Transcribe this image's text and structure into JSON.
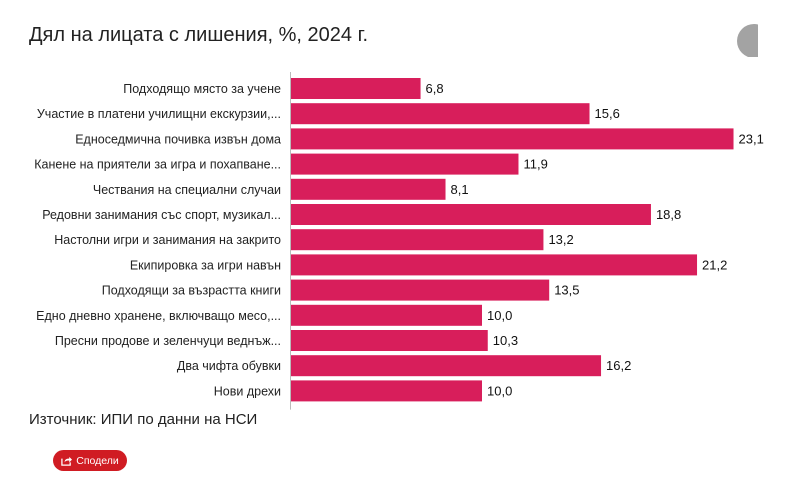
{
  "title": "Дял на лицата с лишения, %, 2024 г.",
  "source": "Източник: ИПИ по данни на НСИ",
  "share_label": "Сподели",
  "colors": {
    "bar": "#d81e5b",
    "share": "#d01c23"
  },
  "chart_data": {
    "type": "bar",
    "orientation": "horizontal",
    "categories": [
      "Подходящо място за учене",
      "Участие в платени училищни екскурзии,...",
      "Едноседмична почивка извън дома",
      "Канене на приятели за игра и похапване...",
      "Чествания на специални случаи",
      "Редовни занимания със спорт, музикал...",
      "Настолни игри и занимания на закрито",
      "Екипировка за игри навън",
      "Подходящи за възрастта книги",
      "Едно дневно хранене, включващо месо,...",
      "Пресни продове и зеленчуци веднъж...",
      "Два чифта обувки",
      "Нови дрехи"
    ],
    "values": [
      6.8,
      15.6,
      23.1,
      11.9,
      8.1,
      18.8,
      13.2,
      21.2,
      13.5,
      10.0,
      10.3,
      16.2,
      10.0
    ],
    "data_labels": [
      "6,8",
      "15,6",
      "23,1",
      "11,9",
      "8,1",
      "18,8",
      "13,2",
      "21,2",
      "13,5",
      "10,0",
      "10,3",
      "16,2",
      "10,0"
    ],
    "grid": false,
    "legend": "none"
  }
}
